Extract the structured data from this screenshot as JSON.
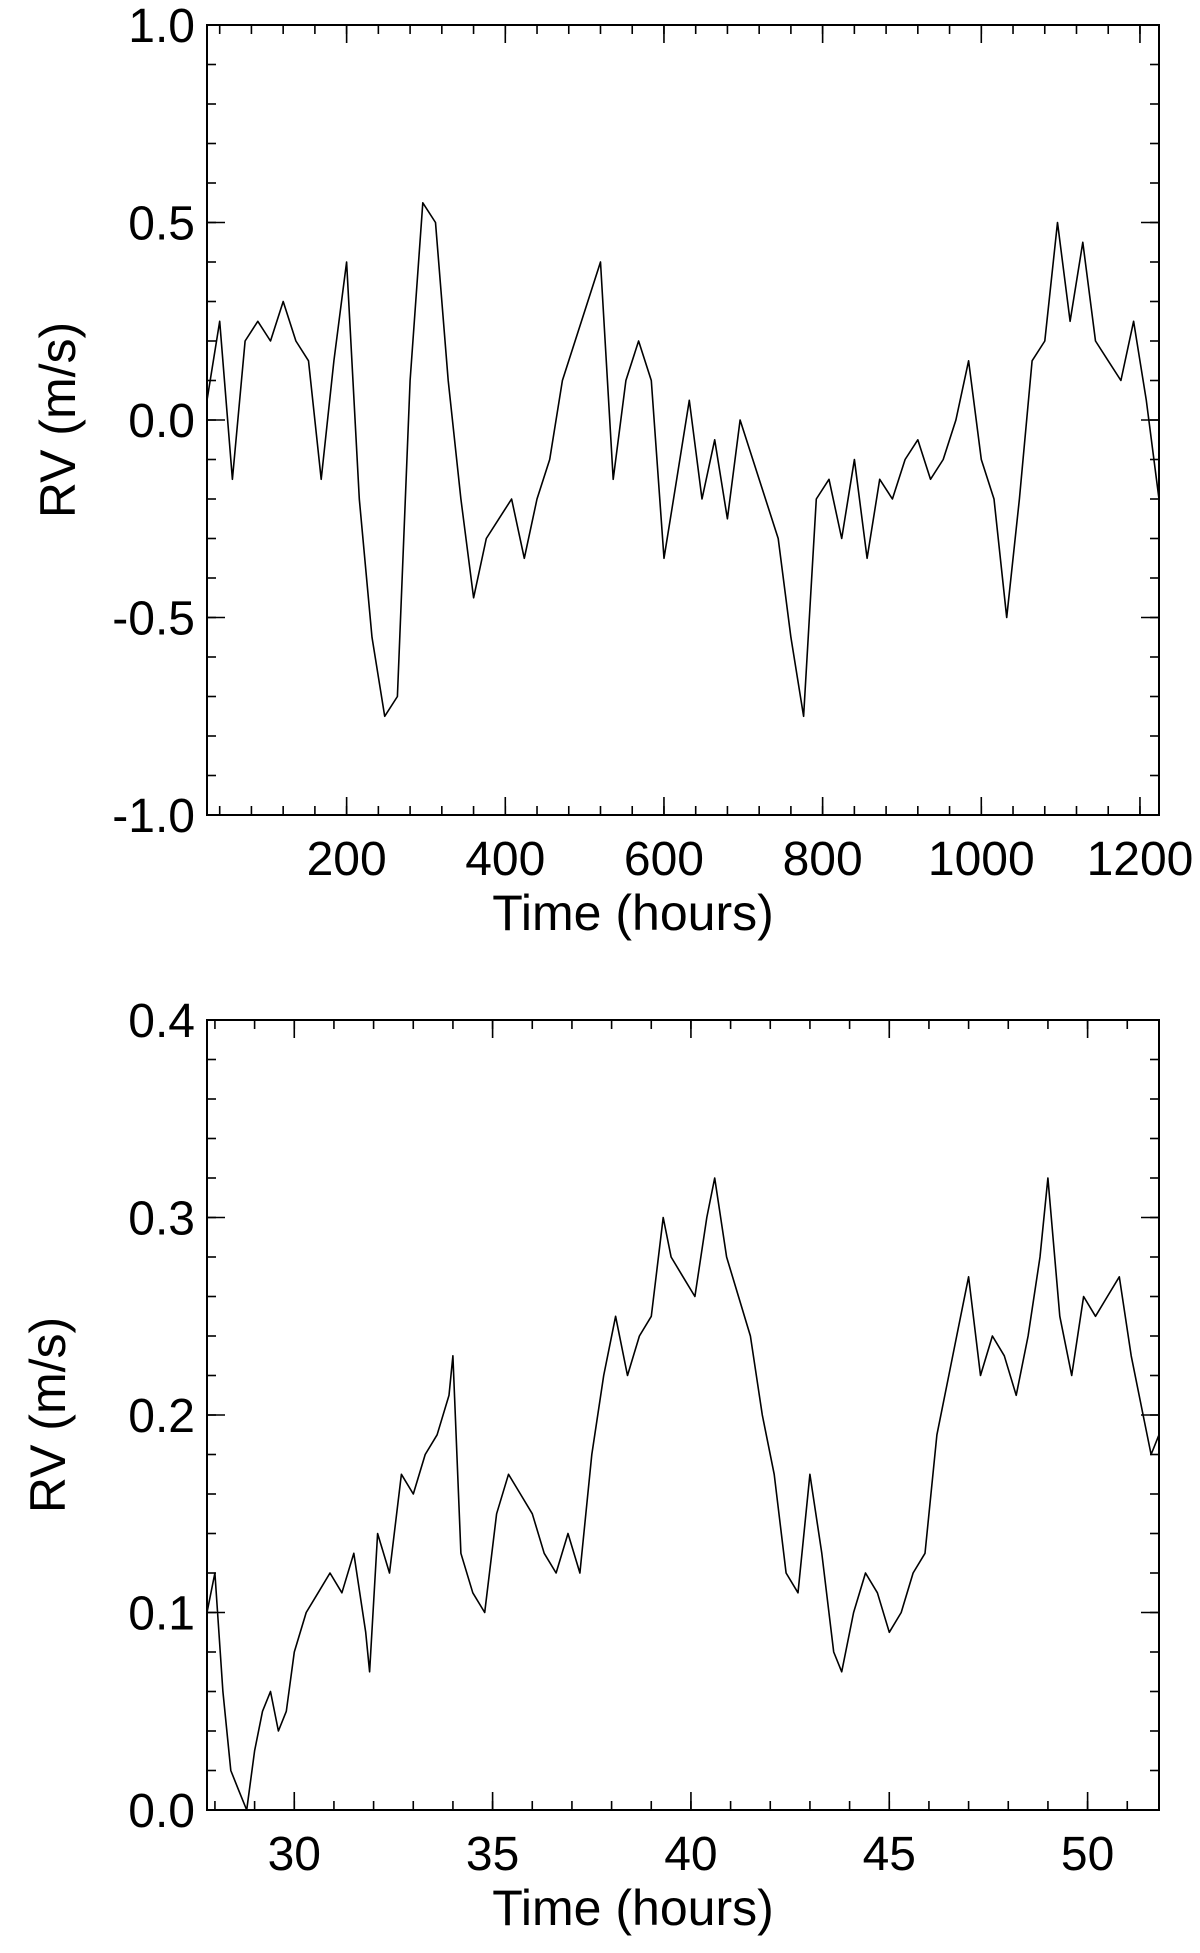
{
  "chart_data": [
    {
      "type": "line",
      "xlabel": "Time (hours)",
      "ylabel": "RV (m/s)",
      "xlim": [
        24,
        1224
      ],
      "ylim": [
        -1.0,
        1.0
      ],
      "x_ticks": [
        "200",
        "400",
        "600",
        "800",
        "1000",
        "1200"
      ],
      "y_ticks": [
        "-1.0",
        "-0.5",
        "0.0",
        "0.5",
        "1.0"
      ],
      "grid": false,
      "legend": "none",
      "line_color": "#000000",
      "series": [
        {
          "x": [
            24,
            40,
            56,
            72,
            88,
            104,
            120,
            136,
            152,
            168,
            184,
            200,
            216,
            232,
            248,
            264,
            280,
            296,
            312,
            328,
            344,
            360,
            376,
            392,
            408,
            424,
            440,
            456,
            472,
            488,
            504,
            520,
            536,
            552,
            568,
            584,
            600,
            616,
            632,
            648,
            664,
            680,
            696,
            712,
            728,
            744,
            760,
            776,
            792,
            808,
            824,
            840,
            856,
            872,
            888,
            904,
            920,
            936,
            952,
            968,
            984,
            1000,
            1016,
            1032,
            1048,
            1064,
            1080,
            1096,
            1112,
            1128,
            1144,
            1160,
            1176,
            1192,
            1208,
            1224
          ],
          "y": [
            0.05,
            0.25,
            -0.15,
            0.2,
            0.25,
            0.2,
            0.3,
            0.2,
            0.15,
            -0.15,
            0.15,
            0.4,
            -0.2,
            -0.55,
            -0.75,
            -0.7,
            0.1,
            0.55,
            0.5,
            0.1,
            -0.2,
            -0.45,
            -0.3,
            -0.25,
            -0.2,
            -0.35,
            -0.2,
            -0.1,
            0.1,
            0.2,
            0.3,
            0.4,
            -0.15,
            0.1,
            0.2,
            0.1,
            -0.35,
            -0.15,
            0.05,
            -0.2,
            -0.05,
            -0.25,
            0.0,
            -0.1,
            -0.2,
            -0.3,
            -0.55,
            -0.75,
            -0.2,
            -0.15,
            -0.3,
            -0.1,
            -0.35,
            -0.15,
            -0.2,
            -0.1,
            -0.05,
            -0.15,
            -0.1,
            0.0,
            0.15,
            -0.1,
            -0.2,
            -0.5,
            -0.2,
            0.15,
            0.2,
            0.5,
            0.25,
            0.45,
            0.2,
            0.15,
            0.1,
            0.25,
            0.05,
            -0.2
          ]
        }
      ]
    },
    {
      "type": "line",
      "xlabel": "Time (hours)",
      "ylabel": "RV (m/s)",
      "xlim": [
        27.8,
        51.8
      ],
      "ylim": [
        0.0,
        0.4
      ],
      "x_ticks": [
        "30",
        "35",
        "40",
        "45",
        "50"
      ],
      "y_ticks": [
        "0.0",
        "0.1",
        "0.2",
        "0.3",
        "0.4"
      ],
      "grid": false,
      "legend": "none",
      "line_color": "#000000",
      "series": [
        {
          "x": [
            27.8,
            28.0,
            28.2,
            28.4,
            28.6,
            28.8,
            29.0,
            29.2,
            29.4,
            29.6,
            29.8,
            30.0,
            30.3,
            30.6,
            30.9,
            31.2,
            31.5,
            31.8,
            31.9,
            32.1,
            32.4,
            32.7,
            33.0,
            33.3,
            33.6,
            33.9,
            34.0,
            34.2,
            34.5,
            34.8,
            35.1,
            35.4,
            35.7,
            36.0,
            36.3,
            36.6,
            36.9,
            37.2,
            37.5,
            37.8,
            38.1,
            38.4,
            38.7,
            39.0,
            39.3,
            39.5,
            39.8,
            40.1,
            40.4,
            40.6,
            40.9,
            41.2,
            41.5,
            41.8,
            42.1,
            42.4,
            42.7,
            43.0,
            43.3,
            43.6,
            43.8,
            44.1,
            44.4,
            44.7,
            45.0,
            45.3,
            45.6,
            45.9,
            46.2,
            46.5,
            46.7,
            47.0,
            47.3,
            47.6,
            47.9,
            48.2,
            48.5,
            48.8,
            49.0,
            49.3,
            49.6,
            49.9,
            50.2,
            50.5,
            50.8,
            51.1,
            51.4,
            51.6,
            51.8
          ],
          "y": [
            0.1,
            0.12,
            0.06,
            0.02,
            0.01,
            0.0,
            0.03,
            0.05,
            0.06,
            0.04,
            0.05,
            0.08,
            0.1,
            0.11,
            0.12,
            0.11,
            0.13,
            0.09,
            0.07,
            0.14,
            0.12,
            0.17,
            0.16,
            0.18,
            0.19,
            0.21,
            0.23,
            0.13,
            0.11,
            0.1,
            0.15,
            0.17,
            0.16,
            0.15,
            0.13,
            0.12,
            0.14,
            0.12,
            0.18,
            0.22,
            0.25,
            0.22,
            0.24,
            0.25,
            0.3,
            0.28,
            0.27,
            0.26,
            0.3,
            0.32,
            0.28,
            0.26,
            0.24,
            0.2,
            0.17,
            0.12,
            0.11,
            0.17,
            0.13,
            0.08,
            0.07,
            0.1,
            0.12,
            0.11,
            0.09,
            0.1,
            0.12,
            0.13,
            0.19,
            0.22,
            0.24,
            0.27,
            0.22,
            0.24,
            0.23,
            0.21,
            0.24,
            0.28,
            0.32,
            0.25,
            0.22,
            0.26,
            0.25,
            0.26,
            0.27,
            0.23,
            0.2,
            0.18,
            0.19
          ]
        }
      ]
    }
  ]
}
